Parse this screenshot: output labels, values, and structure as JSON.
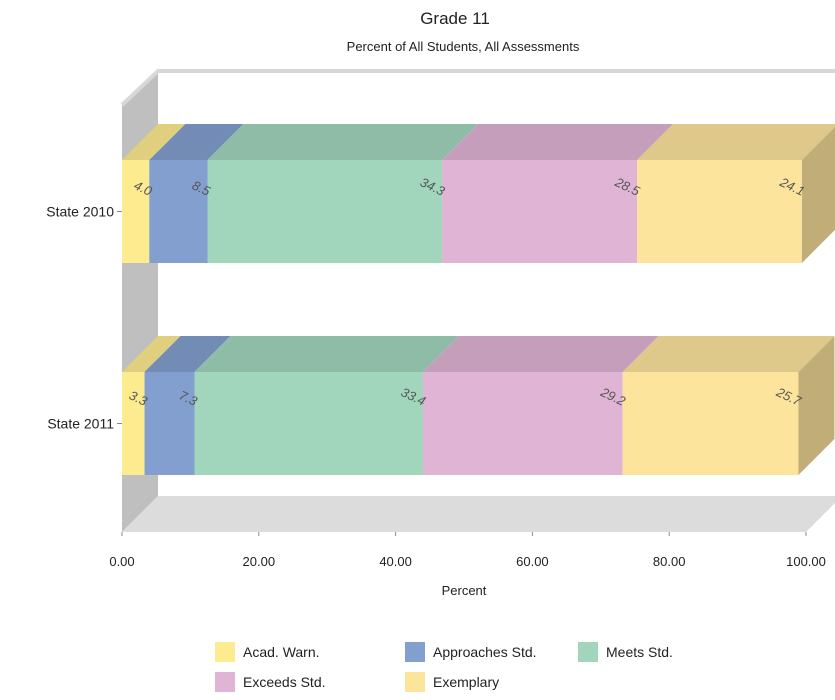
{
  "chart_data": {
    "type": "bar",
    "orientation": "horizontal",
    "stacked": true,
    "three_d": true,
    "title": "Grade 11",
    "subtitle": "Percent of All Students, All Assessments",
    "xlabel": "Percent",
    "xlim": [
      0,
      100
    ],
    "x_ticks": [
      "0.00",
      "20.00",
      "40.00",
      "60.00",
      "80.00",
      "100.00"
    ],
    "legend_position": "bottom",
    "categories": [
      "State 2010",
      "State 2011"
    ],
    "series": [
      {
        "name": "Acad. Warn.",
        "color": "#fdeb8f",
        "values": [
          4.0,
          3.3
        ],
        "labels": [
          "4.0",
          "3.3"
        ]
      },
      {
        "name": "Approaches Std.",
        "color": "#839fcf",
        "values": [
          8.5,
          7.3
        ],
        "labels": [
          "8.5",
          "7.3"
        ]
      },
      {
        "name": "Meets Std.",
        "color": "#a1d6bd",
        "values": [
          34.3,
          33.4
        ],
        "labels": [
          "34.3",
          "33.4"
        ]
      },
      {
        "name": "Exceeds Std.",
        "color": "#e0b4d5",
        "values": [
          28.5,
          29.2
        ],
        "labels": [
          "28.5",
          "29.2"
        ]
      },
      {
        "name": "Exemplary",
        "color": "#fce49d",
        "values": [
          24.1,
          25.7
        ],
        "labels": [
          "24.1",
          "25.7"
        ]
      }
    ]
  }
}
